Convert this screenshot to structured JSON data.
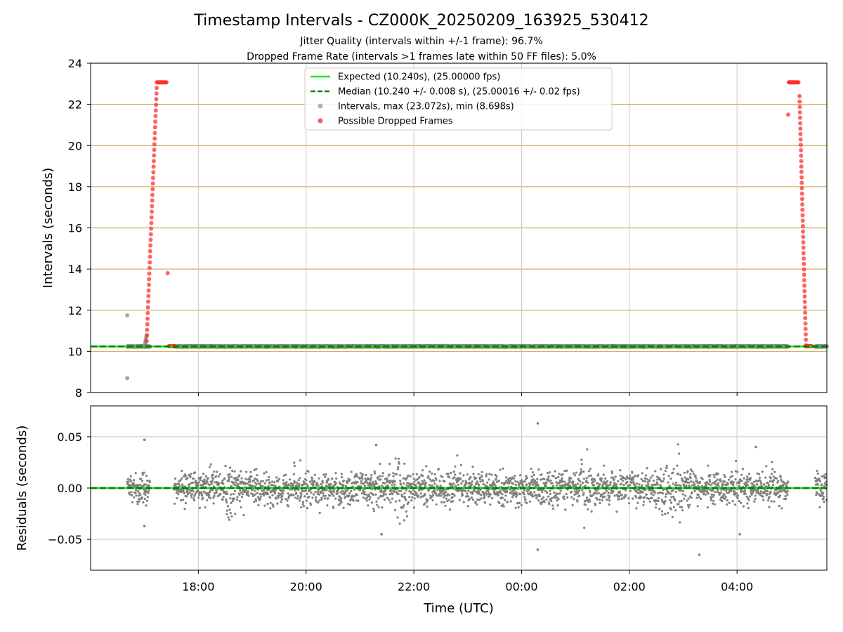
{
  "figure": {
    "title": "Timestamp Intervals - CZ000K_20250209_163925_530412",
    "subtitle_1": "Jitter Quality (intervals within +/-1 frame): 96.7%",
    "subtitle_2": "Dropped Frame Rate (intervals >1 frames late within 50 FF files): 5.0%",
    "xlabel": "Time (UTC)"
  },
  "colors": {
    "expected_line": "#00ee00",
    "median_line": "#007f00",
    "intervals": "#808080",
    "dropped": "#ff3030",
    "top_grid": "#d4b06a",
    "grid": "#c8c8c8"
  },
  "chart_data": [
    {
      "type": "scatter",
      "name": "intervals",
      "ylabel": "Intervals (seconds)",
      "xlim_hours": [
        16.0,
        29.667
      ],
      "ylim": [
        8,
        24
      ],
      "y_ticks": [
        8,
        10,
        12,
        14,
        16,
        18,
        20,
        22,
        24
      ],
      "x_ticks": [
        {
          "hour": 18,
          "label": "18:00"
        },
        {
          "hour": 20,
          "label": "20:00"
        },
        {
          "hour": 22,
          "label": "22:00"
        },
        {
          "hour": 24,
          "label": "00:00"
        },
        {
          "hour": 26,
          "label": "02:00"
        },
        {
          "hour": 28,
          "label": "04:00"
        }
      ],
      "grid": true,
      "legend_position": "top-center",
      "legend": [
        {
          "label": "Expected (10.240s), (25.00000 fps)",
          "kind": "solid-line"
        },
        {
          "label": "Median (10.240 +/- 0.008 s), (25.00016 +/- 0.02 fps)",
          "kind": "dashed-line"
        },
        {
          "label": "Intervals, max (23.072s), min (8.698s)",
          "kind": "gray-dot"
        },
        {
          "label": "Possible Dropped Frames",
          "kind": "red-dot"
        }
      ],
      "expected_interval": 10.24,
      "median_interval": 10.24,
      "max_interval": 23.072,
      "min_interval": 8.698,
      "normal_segments": [
        {
          "start_hour": 16.68,
          "end_hour": 17.1
        },
        {
          "start_hour": 17.55,
          "end_hour": 28.95
        },
        {
          "start_hour": 29.45,
          "end_hour": 29.667
        }
      ],
      "outliers": [
        {
          "hour": 16.68,
          "value": 11.75
        },
        {
          "hour": 16.68,
          "value": 8.7
        }
      ],
      "dropped_ramps": [
        {
          "start_hour": 17.04,
          "end_hour": 17.23,
          "start_value": 10.5,
          "end_value": 23.07
        },
        {
          "start_hour": 29.16,
          "end_hour": 29.28,
          "start_value": 22.4,
          "end_value": 10.3
        }
      ],
      "dropped_plateaus": [
        {
          "start_hour": 17.24,
          "end_hour": 17.42,
          "value": 23.07
        },
        {
          "start_hour": 28.96,
          "end_hour": 29.15,
          "value": 23.07
        },
        {
          "start_hour": 17.45,
          "end_hour": 17.58,
          "value": 10.25
        },
        {
          "start_hour": 29.27,
          "end_hour": 29.4,
          "value": 10.25
        }
      ],
      "dropped_points": [
        {
          "hour": 17.43,
          "value": 13.8
        },
        {
          "hour": 28.95,
          "value": 21.5
        }
      ]
    },
    {
      "type": "scatter",
      "name": "residuals",
      "ylabel": "Residuals (seconds)",
      "xlim_hours": [
        16.0,
        29.667
      ],
      "ylim": [
        -0.08,
        0.08
      ],
      "y_ticks": [
        {
          "value": -0.05,
          "label": "−0.05"
        },
        {
          "value": 0.0,
          "label": "0.00"
        },
        {
          "value": 0.05,
          "label": "0.05"
        }
      ],
      "grid": true,
      "residual_std": 0.008,
      "noisy_periods": [
        {
          "start_hour": 18.5,
          "end_hour": 18.7
        },
        {
          "start_hour": 21.6,
          "end_hour": 21.9
        },
        {
          "start_hour": 25.1,
          "end_hour": 25.3
        },
        {
          "start_hour": 26.6,
          "end_hour": 27.0
        }
      ],
      "outliers": [
        {
          "hour": 17.0,
          "value": 0.047
        },
        {
          "hour": 21.3,
          "value": 0.042
        },
        {
          "hour": 24.3,
          "value": 0.063
        },
        {
          "hour": 24.3,
          "value": -0.06
        },
        {
          "hour": 27.3,
          "value": -0.065
        },
        {
          "hour": 28.35,
          "value": 0.04
        },
        {
          "hour": 28.05,
          "value": -0.045
        },
        {
          "hour": 21.4,
          "value": -0.045
        },
        {
          "hour": 17.0,
          "value": -0.037
        }
      ]
    }
  ]
}
